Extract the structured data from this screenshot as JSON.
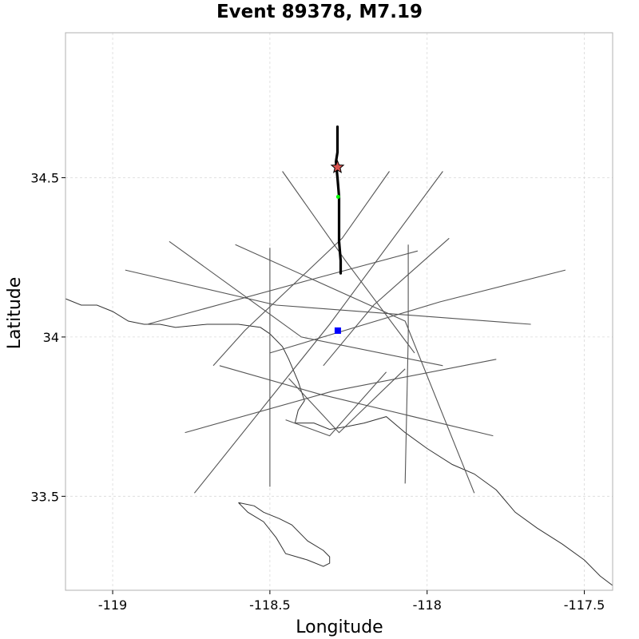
{
  "title": "Event 89378, M7.19",
  "xlabel": "Longitude",
  "ylabel": "Latitude",
  "xlim": [
    -119.15,
    -117.41
  ],
  "ylim": [
    33.205,
    34.955
  ],
  "x_ticks": [
    {
      "value": -119,
      "label": "-119"
    },
    {
      "value": -118.5,
      "label": "-118.5"
    },
    {
      "value": -118,
      "label": "-118"
    },
    {
      "value": -117.5,
      "label": "-117.5"
    }
  ],
  "y_ticks": [
    {
      "value": 33.5,
      "label": "33.5"
    },
    {
      "value": 34,
      "label": "34"
    },
    {
      "value": 34.5,
      "label": "34.5"
    }
  ],
  "grid": true,
  "colors": {
    "rupture": "#000000",
    "fault": "#555555",
    "coast": "#333333",
    "hypocenter": "#d9534f",
    "site": "#0000ff",
    "marker_green": "#00ff00"
  },
  "chart_data": {
    "type": "map",
    "rupture": [
      [
        -118.285,
        34.66
      ],
      [
        -118.285,
        34.58
      ],
      [
        -118.29,
        34.55
      ],
      [
        -118.285,
        34.5
      ],
      [
        -118.28,
        34.44
      ],
      [
        -118.28,
        34.35
      ],
      [
        -118.28,
        34.3
      ],
      [
        -118.275,
        34.24
      ],
      [
        -118.275,
        34.2
      ]
    ],
    "hypocenter": {
      "lon": -118.285,
      "lat": 34.533
    },
    "green_marker": {
      "lon": -118.283,
      "lat": 34.44
    },
    "site": {
      "lon": -118.284,
      "lat": 34.02
    },
    "fault_traces": [
      [
        [
          -118.96,
          34.21
        ],
        [
          -118.48,
          34.1
        ],
        [
          -117.67,
          34.04
        ]
      ],
      [
        [
          -118.61,
          34.29
        ],
        [
          -118.07,
          34.05
        ],
        [
          -117.85,
          33.51
        ]
      ],
      [
        [
          -118.74,
          33.51
        ],
        [
          -118.31,
          34.04
        ],
        [
          -117.95,
          34.52
        ]
      ],
      [
        [
          -118.82,
          34.3
        ],
        [
          -118.4,
          34.0
        ],
        [
          -117.95,
          33.91
        ]
      ],
      [
        [
          -118.5,
          34.28
        ],
        [
          -118.5,
          34.0
        ],
        [
          -118.5,
          33.53
        ]
      ],
      [
        [
          -118.06,
          34.29
        ],
        [
          -118.06,
          34.0
        ],
        [
          -118.07,
          33.54
        ]
      ],
      [
        [
          -118.89,
          34.04
        ],
        [
          -118.37,
          34.18
        ],
        [
          -118.03,
          34.27
        ]
      ],
      [
        [
          -118.66,
          33.91
        ],
        [
          -118.34,
          33.82
        ],
        [
          -117.79,
          33.69
        ]
      ],
      [
        [
          -118.77,
          33.7
        ],
        [
          -118.3,
          33.83
        ],
        [
          -117.78,
          33.93
        ]
      ],
      [
        [
          -118.46,
          34.52
        ],
        [
          -118.26,
          34.24
        ],
        [
          -118.04,
          33.95
        ]
      ],
      [
        [
          -118.12,
          34.52
        ],
        [
          -118.27,
          34.31
        ],
        [
          -118.58,
          34.02
        ],
        [
          -118.68,
          33.91
        ]
      ],
      [
        [
          -118.45,
          33.74
        ],
        [
          -118.31,
          33.69
        ],
        [
          -118.13,
          33.89
        ]
      ],
      [
        [
          -118.44,
          33.87
        ],
        [
          -118.28,
          33.7
        ],
        [
          -118.07,
          33.9
        ]
      ],
      [
        [
          -117.93,
          34.31
        ],
        [
          -118.17,
          34.1
        ],
        [
          -118.33,
          33.91
        ]
      ],
      [
        [
          -117.56,
          34.21
        ],
        [
          -117.96,
          34.11
        ],
        [
          -118.5,
          33.95
        ]
      ]
    ],
    "coastline": [
      [
        -119.15,
        34.12
      ],
      [
        -119.1,
        34.1
      ],
      [
        -119.05,
        34.1
      ],
      [
        -119.0,
        34.08
      ],
      [
        -118.95,
        34.05
      ],
      [
        -118.9,
        34.04
      ],
      [
        -118.85,
        34.04
      ],
      [
        -118.8,
        34.03
      ],
      [
        -118.75,
        34.035
      ],
      [
        -118.7,
        34.04
      ],
      [
        -118.6,
        34.04
      ],
      [
        -118.53,
        34.03
      ],
      [
        -118.5,
        34.01
      ],
      [
        -118.46,
        33.97
      ],
      [
        -118.44,
        33.93
      ],
      [
        -118.41,
        33.86
      ],
      [
        -118.39,
        33.8
      ],
      [
        -118.41,
        33.77
      ],
      [
        -118.42,
        33.73
      ],
      [
        -118.36,
        33.73
      ],
      [
        -118.31,
        33.71
      ],
      [
        -118.25,
        33.72
      ],
      [
        -118.2,
        33.73
      ],
      [
        -118.13,
        33.75
      ],
      [
        -118.07,
        33.7
      ],
      [
        -118.0,
        33.65
      ],
      [
        -117.92,
        33.6
      ],
      [
        -117.85,
        33.57
      ],
      [
        -117.78,
        33.52
      ],
      [
        -117.72,
        33.45
      ],
      [
        -117.65,
        33.4
      ],
      [
        -117.57,
        33.35
      ],
      [
        -117.5,
        33.3
      ],
      [
        -117.45,
        33.25
      ],
      [
        -117.41,
        33.22
      ]
    ],
    "island": [
      [
        -118.6,
        33.48
      ],
      [
        -118.55,
        33.47
      ],
      [
        -118.52,
        33.45
      ],
      [
        -118.47,
        33.43
      ],
      [
        -118.43,
        33.41
      ],
      [
        -118.38,
        33.36
      ],
      [
        -118.33,
        33.33
      ],
      [
        -118.31,
        33.31
      ],
      [
        -118.31,
        33.29
      ],
      [
        -118.33,
        33.28
      ],
      [
        -118.38,
        33.3
      ],
      [
        -118.45,
        33.32
      ],
      [
        -118.48,
        33.37
      ],
      [
        -118.52,
        33.42
      ],
      [
        -118.57,
        33.45
      ],
      [
        -118.6,
        33.48
      ]
    ]
  }
}
